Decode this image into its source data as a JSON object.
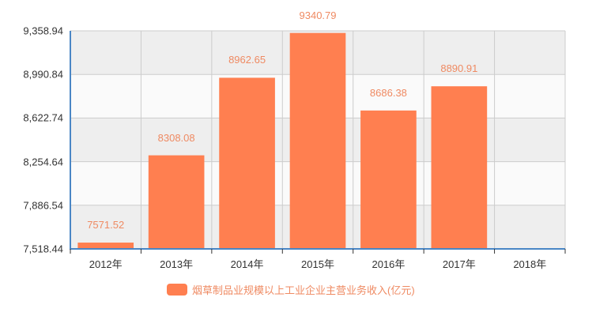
{
  "chart_data": {
    "type": "bar",
    "title": "",
    "xlabel": "",
    "ylabel": "",
    "categories": [
      "2012年",
      "2013年",
      "2014年",
      "2015年",
      "2016年",
      "2017年",
      "2018年"
    ],
    "series": [
      {
        "name": "烟草制品业规模以上工业企业主营业务收入(亿元)",
        "values": [
          7571.52,
          8308.08,
          8962.65,
          9340.79,
          8686.38,
          8890.91,
          null
        ],
        "labels": [
          "7571.52",
          "8308.08",
          "8962.65",
          "9340.79",
          "8686.38",
          "8890.91",
          ""
        ],
        "color": "#ff7f50"
      }
    ],
    "ylim": [
      7518.44,
      9358.94
    ],
    "yticks": [
      7518.44,
      7886.54,
      8254.64,
      8622.74,
      8990.84,
      9358.94
    ],
    "ytick_labels": [
      "7,518.44",
      "7,886.54",
      "8,254.64",
      "8,622.74",
      "8,990.84",
      "9,358.94"
    ],
    "grid": true,
    "legend_position": "bottom"
  },
  "legend": {
    "label": "烟草制品业规模以上工业企业主营业务收入(亿元)"
  },
  "colors": {
    "bar": "#ff7f50",
    "value_label": "#ef8a62",
    "axis": "#4a86c5",
    "band_dark": "#eeeeee",
    "band_light": "#fafafa",
    "grid": "#cccccc"
  }
}
